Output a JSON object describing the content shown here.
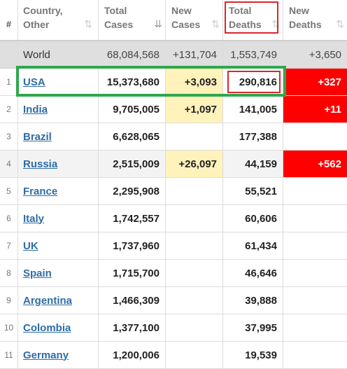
{
  "header": {
    "index": "#",
    "country_line1": "Country,",
    "country_line2": "Other",
    "total_cases_line1": "Total",
    "total_cases_line2": "Cases",
    "new_cases_line1": "New",
    "new_cases_line2": "Cases",
    "total_deaths_line1": "Total",
    "total_deaths_line2": "Deaths",
    "new_deaths_line1": "New",
    "new_deaths_line2": "Deaths"
  },
  "world": {
    "name": "World",
    "total_cases": "68,084,568",
    "new_cases": "+131,704",
    "total_deaths": "1,553,749",
    "new_deaths": "+3,650"
  },
  "rows": [
    {
      "rank": "1",
      "country": "USA",
      "total_cases": "15,373,680",
      "new_cases": "+3,093",
      "total_deaths": "290,816",
      "new_deaths": "+327"
    },
    {
      "rank": "2",
      "country": "India",
      "total_cases": "9,705,005",
      "new_cases": "+1,097",
      "total_deaths": "141,005",
      "new_deaths": "+11"
    },
    {
      "rank": "3",
      "country": "Brazil",
      "total_cases": "6,628,065",
      "new_cases": "",
      "total_deaths": "177,388",
      "new_deaths": ""
    },
    {
      "rank": "4",
      "country": "Russia",
      "total_cases": "2,515,009",
      "new_cases": "+26,097",
      "total_deaths": "44,159",
      "new_deaths": "+562"
    },
    {
      "rank": "5",
      "country": "France",
      "total_cases": "2,295,908",
      "new_cases": "",
      "total_deaths": "55,521",
      "new_deaths": ""
    },
    {
      "rank": "6",
      "country": "Italy",
      "total_cases": "1,742,557",
      "new_cases": "",
      "total_deaths": "60,606",
      "new_deaths": ""
    },
    {
      "rank": "7",
      "country": "UK",
      "total_cases": "1,737,960",
      "new_cases": "",
      "total_deaths": "61,434",
      "new_deaths": ""
    },
    {
      "rank": "8",
      "country": "Spain",
      "total_cases": "1,715,700",
      "new_cases": "",
      "total_deaths": "46,646",
      "new_deaths": ""
    },
    {
      "rank": "9",
      "country": "Argentina",
      "total_cases": "1,466,309",
      "new_cases": "",
      "total_deaths": "39,888",
      "new_deaths": ""
    },
    {
      "rank": "10",
      "country": "Colombia",
      "total_cases": "1,377,100",
      "new_cases": "",
      "total_deaths": "37,995",
      "new_deaths": ""
    },
    {
      "rank": "11",
      "country": "Germany",
      "total_cases": "1,200,006",
      "new_cases": "",
      "total_deaths": "19,539",
      "new_deaths": ""
    }
  ],
  "colors": {
    "new_cases_highlight": "#fff2bb",
    "new_deaths_highlight": "#ff0000",
    "link": "#2e6da4",
    "annotation_red": "#d9272e",
    "annotation_green": "#2ea84c"
  },
  "icons": {
    "sort": "sort-icon",
    "sort_active": "sort-desc-icon"
  }
}
